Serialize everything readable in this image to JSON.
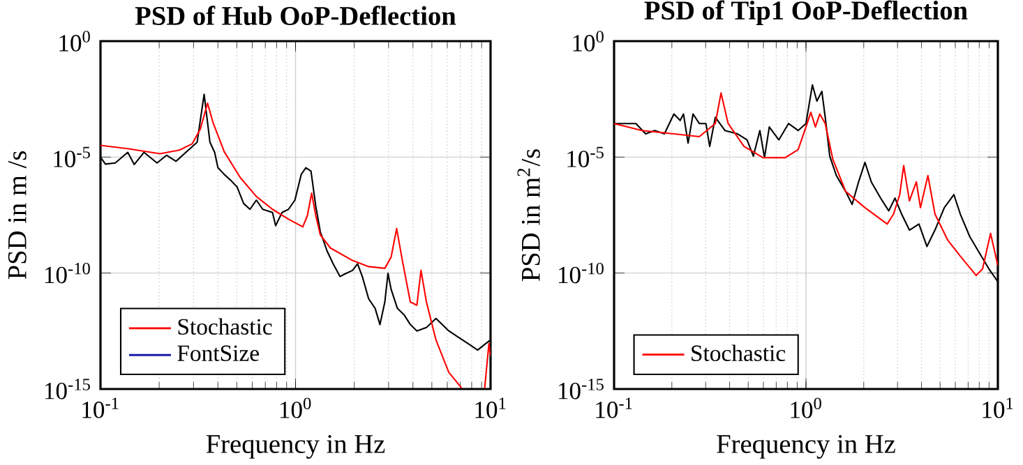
{
  "chart_data": [
    {
      "type": "line",
      "title": "PSD of Hub OoP-Deflection",
      "xlabel": "Frequency in Hz",
      "ylabel": "PSD in m /s",
      "xlim": [
        0.1,
        10
      ],
      "ylim": [
        1e-15,
        1
      ],
      "xticks": [
        {
          "value": 0.1,
          "label": "10$^{-1}$"
        },
        {
          "value": 1,
          "label": "10$^{0}$"
        },
        {
          "value": 10,
          "label": "10$^{1}$"
        }
      ],
      "yticks": [
        {
          "value": 1e-15,
          "label": "10$^{-15}$"
        },
        {
          "value": 1e-10,
          "label": "10$^{-10}$"
        },
        {
          "value": 1e-05,
          "label": "10$^{-5}$"
        },
        {
          "value": 1,
          "label": "10$^{0}$"
        }
      ],
      "log": "xy",
      "grid": true,
      "legend": "bottom left",
      "marker": "none",
      "line_style": "solid",
      "series": [
        {
          "color": "#000000",
          "x": [
            0.1,
            0.106,
            0.119,
            0.138,
            0.149,
            0.167,
            0.195,
            0.218,
            0.244,
            0.274,
            0.295,
            0.313,
            0.34,
            0.364,
            0.385,
            0.4,
            0.431,
            0.466,
            0.502,
            0.542,
            0.584,
            0.63,
            0.679,
            0.762,
            0.791,
            0.853,
            0.92,
            0.993,
            1.07,
            1.13,
            1.2,
            1.27,
            1.34,
            1.45,
            1.56,
            1.69,
            1.82,
            1.96,
            2.08,
            2.2,
            2.37,
            2.56,
            2.71,
            2.87,
            2.98,
            3.09,
            3.33,
            3.6,
            3.88,
            4.19,
            4.69,
            5.25,
            6.11,
            6.85,
            7.67,
            8.59,
            9.44,
            10
          ],
          "values": [
            1e-05,
            5e-06,
            5.6e-06,
            1.6e-05,
            4.8e-06,
            1.6e-05,
            5.6e-06,
            1.2e-05,
            6.6e-06,
            1.6e-05,
            2.8e-05,
            4.4e-05,
            0.0051,
            4.4e-05,
            1.6e-05,
            3.5e-06,
            1.8e-06,
            9.8e-07,
            5.1e-07,
            1e-07,
            5.6e-08,
            1.4e-07,
            5.6e-08,
            4.1e-08,
            1.1e-08,
            4.1e-08,
            5.6e-08,
            1.4e-07,
            1.8e-06,
            3.5e-06,
            2.5e-06,
            7.7e-08,
            6e-09,
            9.1e-10,
            2.5e-10,
            7.1e-11,
            9.8e-11,
            1.3e-10,
            2.5e-10,
            7.1e-11,
            7.8e-12,
            3e-12,
            6e-13,
            5.6e-12,
            9.8e-11,
            2e-11,
            3e-12,
            1.6e-12,
            6e-13,
            3.2e-13,
            4.5e-13,
            1.1e-12,
            3.2e-13,
            1.7e-13,
            9.1e-14,
            4.8e-14,
            9.1e-14,
            1.3e-13
          ]
        },
        {
          "name": "Stochastic",
          "color": "#ff0000",
          "x": [
            0.1,
            0.138,
            0.202,
            0.254,
            0.295,
            0.325,
            0.354,
            0.378,
            0.431,
            0.521,
            0.63,
            0.762,
            0.92,
            1.09,
            1.15,
            1.21,
            1.27,
            1.34,
            1.51,
            1.96,
            2.37,
            2.87,
            3.09,
            3.3,
            3.53,
            3.88,
            4.19,
            4.4,
            4.69,
            5.25,
            6.11,
            7.11,
            7.96,
            9.33,
            9.81,
            10
          ],
          "values": [
            3.2e-05,
            2.3e-05,
            1.4e-05,
            2e-05,
            3.7e-05,
            0.00016,
            0.0021,
            0.0003,
            1.7e-05,
            1.3e-06,
            2e-07,
            5.6e-08,
            2.1e-08,
            9.8e-09,
            3e-08,
            2.8e-07,
            3e-08,
            4.4e-09,
            1.2e-09,
            3.5e-10,
            1.9e-10,
            1.6e-10,
            4.8e-10,
            8.3e-09,
            3.5e-10,
            5.6e-12,
            4.1e-12,
            1.3e-10,
            5.6e-12,
            1.3e-13,
            5.2e-15,
            1.1e-15,
            null,
            1.1e-15,
            9.1e-14,
            2.6e-14
          ]
        },
        {
          "name": "FontSize",
          "color": "#1a1aa8"
        }
      ]
    },
    {
      "type": "line",
      "title": "PSD of Tip1 OoP-Deflection",
      "xlabel": "Frequency in Hz",
      "ylabel": "PSD in m$^{2}$/s",
      "xlim": [
        0.1,
        10
      ],
      "ylim": [
        1e-15,
        1
      ],
      "xticks": [
        {
          "value": 0.1,
          "label": "10$^{-1}$"
        },
        {
          "value": 1,
          "label": "10$^{0}$"
        },
        {
          "value": 10,
          "label": "10$^{1}$"
        }
      ],
      "yticks": [
        {
          "value": 1e-15,
          "label": "10$^{-15}$"
        },
        {
          "value": 1e-10,
          "label": "10$^{-10}$"
        },
        {
          "value": 1e-05,
          "label": "10$^{-5}$"
        },
        {
          "value": 1,
          "label": "10$^{0}$"
        }
      ],
      "log": "xy",
      "grid": true,
      "legend": "bottom left",
      "marker": "none",
      "line_style": "solid",
      "series": [
        {
          "color": "#000000",
          "x": [
            0.1,
            0.13,
            0.146,
            0.163,
            0.183,
            0.205,
            0.221,
            0.23,
            0.243,
            0.258,
            0.278,
            0.301,
            0.315,
            0.337,
            0.378,
            0.44,
            0.493,
            0.532,
            0.575,
            0.608,
            0.644,
            0.722,
            0.811,
            0.91,
            1.0,
            1.08,
            1.14,
            1.21,
            1.26,
            1.33,
            1.44,
            1.61,
            1.74,
            1.88,
            2.03,
            2.19,
            2.45,
            2.7,
            2.91,
            3.15,
            3.46,
            3.88,
            4.27,
            4.7,
            5.26,
            5.9,
            6.37,
            7.14,
            8.01,
            8.99,
            10
          ],
          "values": [
            0.00028,
            0.00028,
            0.0001,
            0.00014,
            0.0001,
            0.00072,
            0.00038,
            0.00072,
            4e-05,
            0.00072,
            0.00028,
            0.00028,
            2.9e-05,
            0.00052,
            0.00014,
            0.0001,
            5.5e-05,
            1.1e-05,
            0.00014,
            9.5e-06,
            0.0002,
            5.5e-05,
            0.00028,
            0.00014,
            0.00028,
            0.013,
            0.0026,
            0.0068,
            0.00052,
            1.1e-05,
            1.6e-06,
            3.3e-07,
            9.1e-08,
            8.5e-07,
            5.9e-06,
            8.5e-07,
            1.7e-07,
            4.8e-08,
            1.7e-07,
            3.5e-08,
            7.1e-09,
            1.3e-08,
            1.4e-09,
            7.1e-09,
            6.6e-08,
            2.4e-07,
            3.5e-08,
            3.7e-09,
            7.4e-10,
            1.5e-10,
            4.2e-11
          ]
        },
        {
          "name": "Stochastic",
          "color": "#ff0000",
          "x": [
            0.1,
            0.14,
            0.205,
            0.278,
            0.337,
            0.361,
            0.393,
            0.475,
            0.597,
            0.78,
            0.91,
            1.0,
            1.06,
            1.12,
            1.18,
            1.26,
            1.38,
            1.61,
            2.03,
            2.65,
            2.86,
            3.08,
            3.23,
            3.46,
            3.76,
            3.95,
            4.32,
            4.7,
            5.47,
            6.37,
            7.71,
            8.32,
            9.16,
            10
          ],
          "values": [
            0.00028,
            0.00014,
            0.0001,
            7.6e-05,
            0.00028,
            0.0058,
            0.00028,
            2.9e-05,
            9.5e-06,
            9.5e-06,
            2.1e-05,
            0.0002,
            0.00085,
            0.0002,
            0.00072,
            0.00028,
            8.1e-06,
            3.3e-07,
            6.6e-08,
            1.3e-08,
            3.5e-08,
            2.4e-07,
            4.3e-06,
            1.3e-07,
            8.5e-07,
            6.6e-08,
            1.6e-06,
            3.5e-08,
            2.7e-09,
            5.4e-10,
            7.9e-11,
            1.5e-10,
            5.1e-09,
            2.1e-10
          ]
        }
      ]
    }
  ]
}
